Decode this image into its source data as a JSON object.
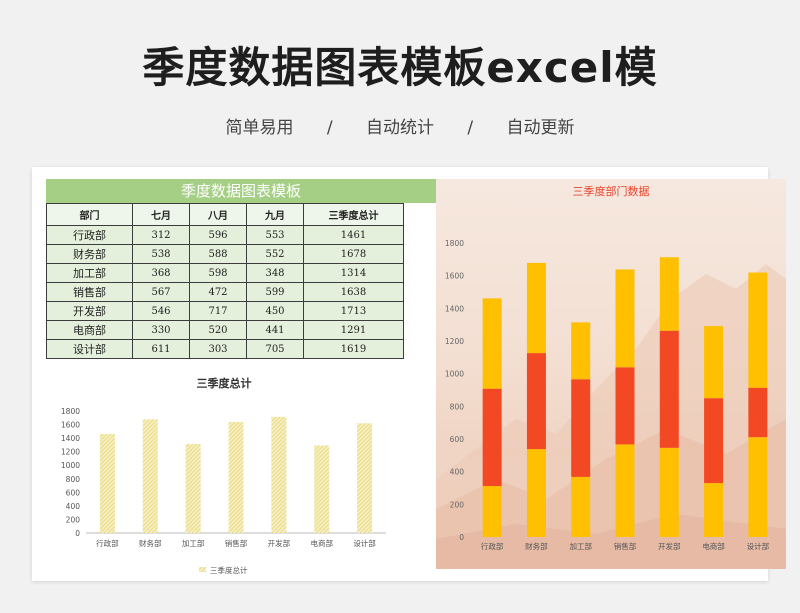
{
  "page": {
    "title": "季度数据图表模板excel模",
    "subtitle": [
      "简单易用",
      "/",
      "自动统计",
      "/",
      "自动更新"
    ]
  },
  "table": {
    "title": "季度数据图表模板",
    "headers": [
      "部门",
      "七月",
      "八月",
      "九月",
      "三季度总计"
    ],
    "rows": [
      [
        "行政部",
        "312",
        "596",
        "553",
        "1461"
      ],
      [
        "财务部",
        "538",
        "588",
        "552",
        "1678"
      ],
      [
        "加工部",
        "368",
        "598",
        "348",
        "1314"
      ],
      [
        "销售部",
        "567",
        "472",
        "599",
        "1638"
      ],
      [
        "开发部",
        "546",
        "717",
        "450",
        "1713"
      ],
      [
        "电商部",
        "330",
        "520",
        "441",
        "1291"
      ],
      [
        "设计部",
        "611",
        "303",
        "705",
        "1619"
      ]
    ]
  },
  "chart_data": [
    {
      "type": "bar",
      "title": "三季度总计",
      "categories": [
        "行政部",
        "财务部",
        "加工部",
        "销售部",
        "开发部",
        "电商部",
        "设计部"
      ],
      "series": [
        {
          "name": "三季度总计",
          "values": [
            1461,
            1678,
            1314,
            1638,
            1713,
            1291,
            1619
          ]
        }
      ],
      "ylim": [
        0,
        1800
      ],
      "yticks": [
        0,
        200,
        400,
        600,
        800,
        1000,
        1200,
        1400,
        1600,
        1800
      ],
      "legend": "bottom",
      "color": "#eadc8a"
    },
    {
      "type": "bar",
      "stacked": true,
      "title": "三季度部门数据",
      "categories": [
        "行政部",
        "财务部",
        "加工部",
        "销售部",
        "开发部",
        "电商部",
        "设计部"
      ],
      "series": [
        {
          "values": [
            312,
            538,
            368,
            567,
            546,
            330,
            611
          ],
          "color": "#fec000"
        },
        {
          "values": [
            596,
            588,
            598,
            472,
            717,
            520,
            303
          ],
          "color": "#f34824"
        },
        {
          "values": [
            553,
            552,
            348,
            599,
            450,
            441,
            705
          ],
          "color": "#fec000"
        }
      ],
      "ylim": [
        0,
        1800
      ],
      "yticks": [
        0,
        200,
        400,
        600,
        800,
        1000,
        1200,
        1400,
        1600,
        1800
      ],
      "title_color": "#e8442c"
    }
  ]
}
